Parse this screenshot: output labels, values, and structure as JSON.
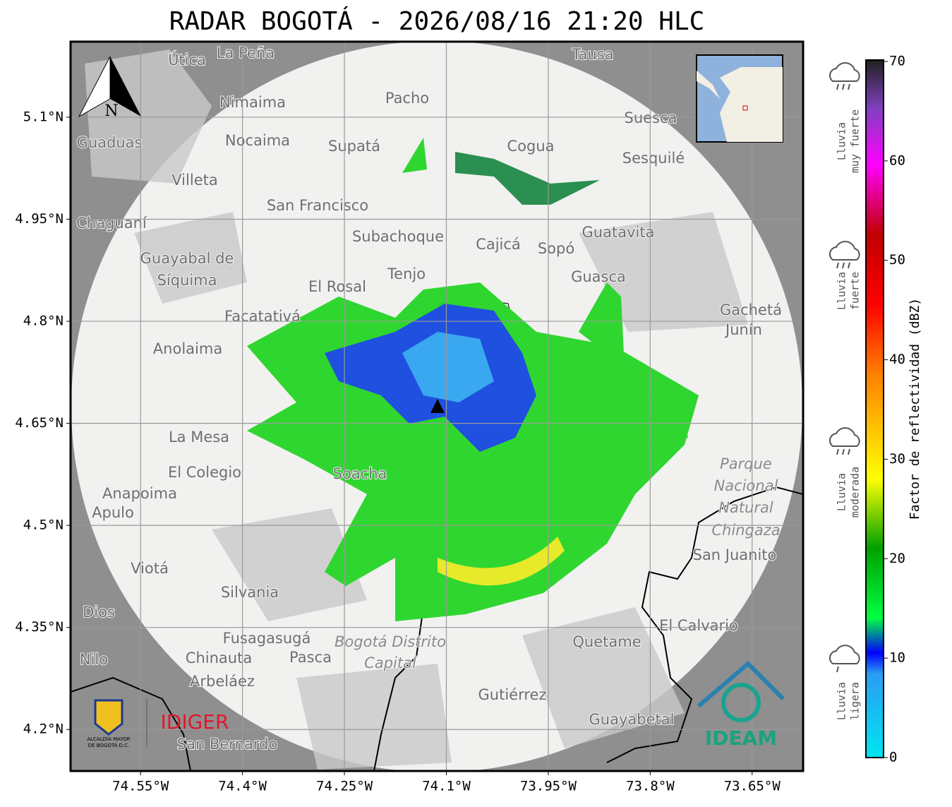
{
  "title": "RADAR BOGOTÁ - 2026/08/16 21:20 HLC",
  "map": {
    "xlim": [
      -74.653,
      -73.575
    ],
    "ylim": [
      4.139,
      5.211
    ],
    "xticks": [
      {
        "value": -74.55,
        "label": "74.55°W"
      },
      {
        "value": -74.4,
        "label": "74.4°W"
      },
      {
        "value": -74.25,
        "label": "74.25°W"
      },
      {
        "value": -74.1,
        "label": "74.1°W"
      },
      {
        "value": -73.95,
        "label": "73.95°W"
      },
      {
        "value": -73.8,
        "label": "73.8°W"
      },
      {
        "value": -73.65,
        "label": "73.65°W"
      }
    ],
    "yticks": [
      {
        "value": 4.2,
        "label": "4.2°N"
      },
      {
        "value": 4.35,
        "label": "4.35°N"
      },
      {
        "value": 4.5,
        "label": "4.5°N"
      },
      {
        "value": 4.65,
        "label": "4.65°N"
      },
      {
        "value": 4.8,
        "label": "4.8°N"
      },
      {
        "value": 4.95,
        "label": "4.95°N"
      },
      {
        "value": 5.1,
        "label": "5.1°N"
      }
    ],
    "places": [
      "La Peña",
      "Útica",
      "Tausa",
      "Pacho",
      "Nimaima",
      "Nocaima",
      "Guaduas",
      "Supatá",
      "Cogua",
      "Suesca",
      "Sesquilé",
      "Villeta",
      "San Francisco",
      "Chaguaní",
      "Guatavita",
      "Subachoque",
      "Cajicá",
      "Sopó",
      "Guayabal de",
      "Síquima",
      "Tenjo",
      "Guasca",
      "El Rosal",
      "Facatativá",
      "Gachetá",
      "Junín",
      "Anolaima",
      "La Mesa",
      "El Colegio",
      "Soacha",
      "Anapoima",
      "Apulo",
      "Parque",
      "Nacional",
      "Natural",
      "Chingaza",
      "San Juanito",
      "Viotá",
      "Silvania",
      "Dios",
      "El Calvario",
      "Fusagasugá",
      "Bogotá Distrito",
      "Capital",
      "Quetame",
      "Nilo",
      "Chinauta",
      "Pasca",
      "Arbeláez",
      "Gutiérrez",
      "Guayabetal",
      "San Bernardo"
    ],
    "north": "N"
  },
  "colorbar": {
    "label": "Factor de reflectividad (dBZ)",
    "lim": [
      0,
      70
    ],
    "ticks": [
      0,
      10,
      20,
      30,
      40,
      50,
      60,
      70
    ]
  },
  "rain_categories": [
    [
      "Lluvia",
      "muy fuerte"
    ],
    [
      "Lluvia",
      "fuerte"
    ],
    [
      "Lluvia",
      "moderada"
    ],
    [
      "Lluvia",
      "ligera"
    ]
  ],
  "logos": {
    "alcaldia": [
      "ALCALDÍA MAYOR",
      "DE BOGOTÁ D.C."
    ],
    "idiger": "IDIGER",
    "ideam": "IDEAM"
  }
}
